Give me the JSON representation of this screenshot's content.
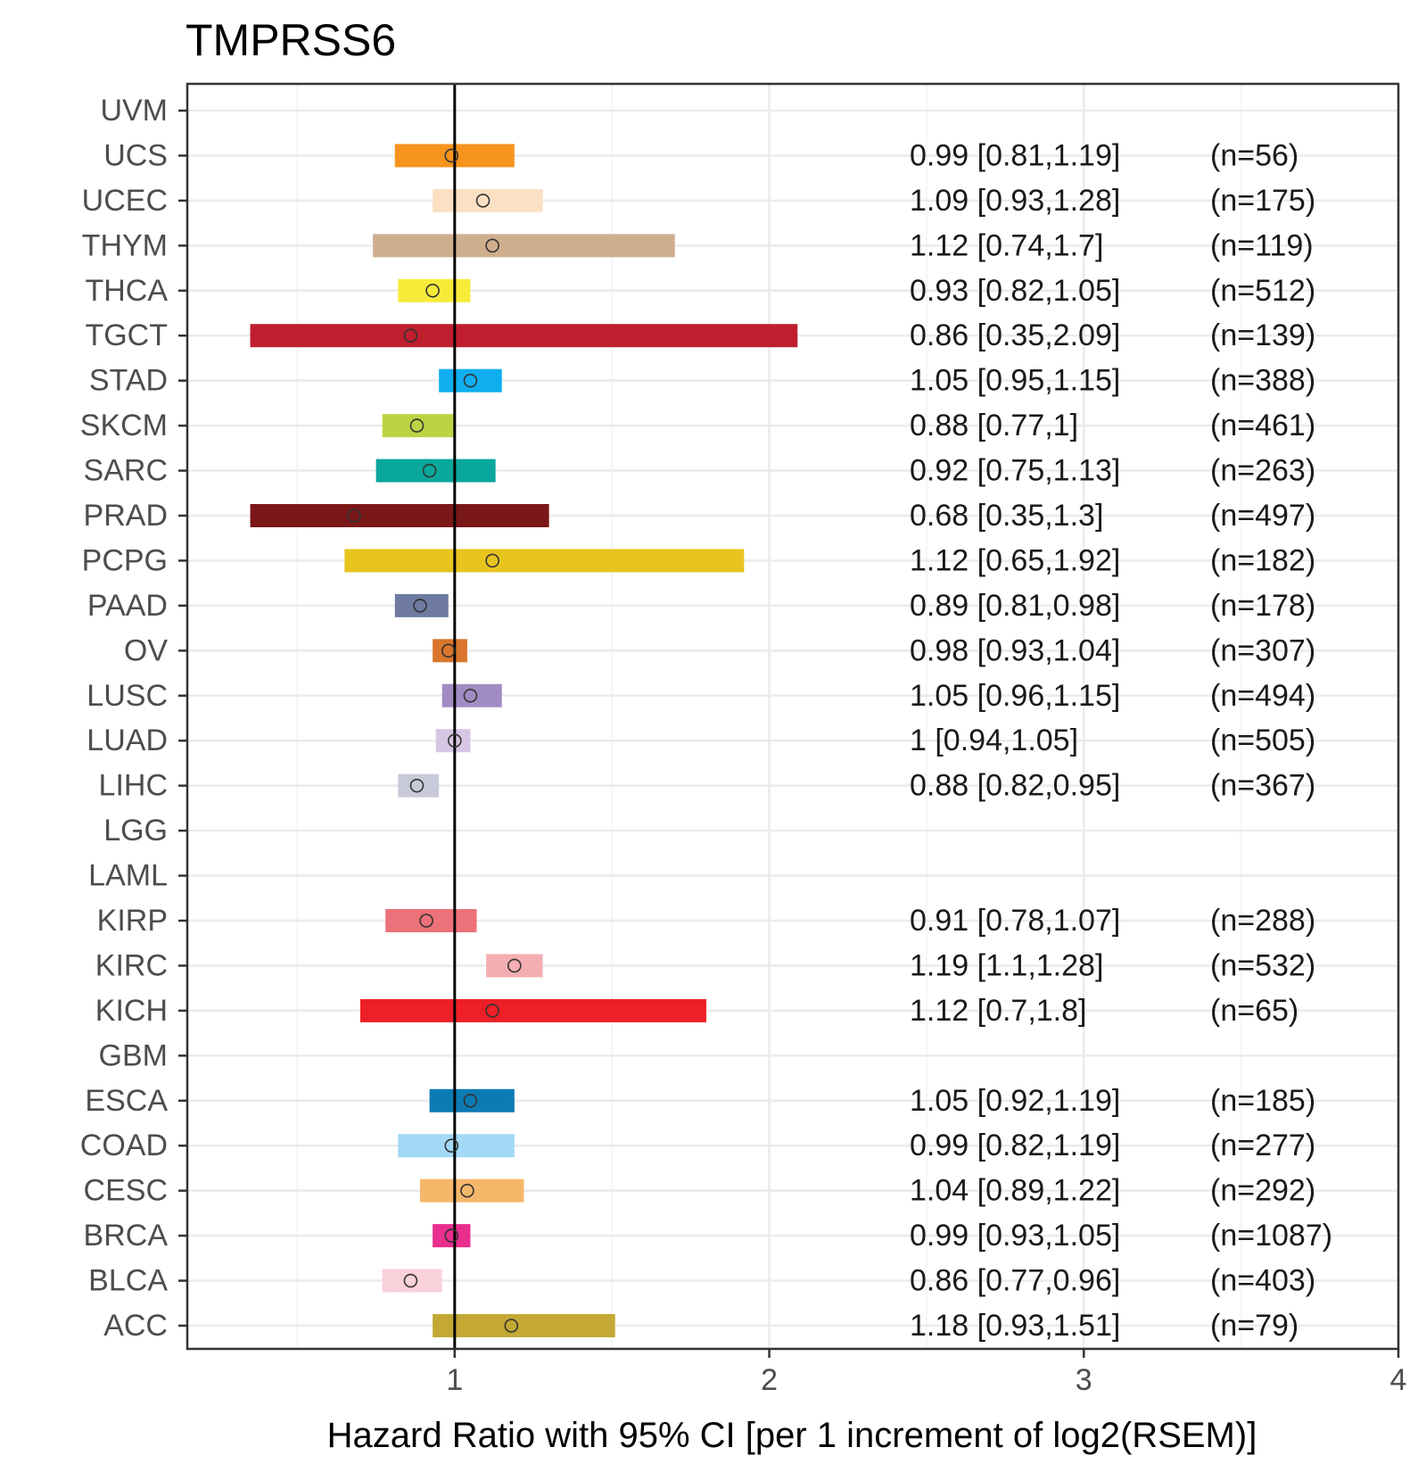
{
  "chart_data": {
    "type": "forest",
    "title": "TMPRSS6",
    "xlabel": "Hazard Ratio with 95% CI [per 1 increment of log2(RSEM)]",
    "ylabel": "",
    "xlim": [
      0.15,
      4.0
    ],
    "xticks": [
      1,
      2,
      3,
      4
    ],
    "xtick_labels": [
      "1",
      "2",
      "3",
      "4"
    ],
    "reference_line": 1,
    "grid": true,
    "rows": [
      {
        "cancer": "UVM",
        "hr": null,
        "lo": null,
        "hi": null,
        "ci_text": "",
        "n_text": "",
        "color": null
      },
      {
        "cancer": "UCS",
        "hr": 0.99,
        "lo": 0.81,
        "hi": 1.19,
        "ci_text": "0.99 [0.81,1.19]",
        "n_text": "(n=56)",
        "color": "#F7941D"
      },
      {
        "cancer": "UCEC",
        "hr": 1.09,
        "lo": 0.93,
        "hi": 1.28,
        "ci_text": "1.09 [0.93,1.28]",
        "n_text": "(n=175)",
        "color": "#FCE0C4"
      },
      {
        "cancer": "THYM",
        "hr": 1.12,
        "lo": 0.74,
        "hi": 1.7,
        "ci_text": "1.12 [0.74,1.7]",
        "n_text": "(n=119)",
        "color": "#CFAE8E"
      },
      {
        "cancer": "THCA",
        "hr": 0.93,
        "lo": 0.82,
        "hi": 1.05,
        "ci_text": "0.93 [0.82,1.05]",
        "n_text": "(n=512)",
        "color": "#F7EB3A"
      },
      {
        "cancer": "TGCT",
        "hr": 0.86,
        "lo": 0.35,
        "hi": 2.09,
        "ci_text": "0.86 [0.35,2.09]",
        "n_text": "(n=139)",
        "color": "#BE1E2D"
      },
      {
        "cancer": "STAD",
        "hr": 1.05,
        "lo": 0.95,
        "hi": 1.15,
        "ci_text": "1.05 [0.95,1.15]",
        "n_text": "(n=388)",
        "color": "#0FAEEF"
      },
      {
        "cancer": "SKCM",
        "hr": 0.88,
        "lo": 0.77,
        "hi": 1,
        "ci_text": "0.88 [0.77,1]",
        "n_text": "(n=461)",
        "color": "#BBD444"
      },
      {
        "cancer": "SARC",
        "hr": 0.92,
        "lo": 0.75,
        "hi": 1.13,
        "ci_text": "0.92 [0.75,1.13]",
        "n_text": "(n=263)",
        "color": "#0AA79C"
      },
      {
        "cancer": "PRAD",
        "hr": 0.68,
        "lo": 0.35,
        "hi": 1.3,
        "ci_text": "0.68 [0.35,1.3]",
        "n_text": "(n=497)",
        "color": "#7A1719"
      },
      {
        "cancer": "PCPG",
        "hr": 1.12,
        "lo": 0.65,
        "hi": 1.92,
        "ci_text": "1.12 [0.65,1.92]",
        "n_text": "(n=182)",
        "color": "#E8C41F"
      },
      {
        "cancer": "PAAD",
        "hr": 0.89,
        "lo": 0.81,
        "hi": 0.98,
        "ci_text": "0.89 [0.81,0.98]",
        "n_text": "(n=178)",
        "color": "#6F7BA1"
      },
      {
        "cancer": "OV",
        "hr": 0.98,
        "lo": 0.93,
        "hi": 1.04,
        "ci_text": "0.98 [0.93,1.04]",
        "n_text": "(n=307)",
        "color": "#D9762B"
      },
      {
        "cancer": "LUSC",
        "hr": 1.05,
        "lo": 0.96,
        "hi": 1.15,
        "ci_text": "1.05 [0.96,1.15]",
        "n_text": "(n=494)",
        "color": "#A08CC2"
      },
      {
        "cancer": "LUAD",
        "hr": 1,
        "lo": 0.94,
        "hi": 1.05,
        "ci_text": "1 [0.94,1.05]",
        "n_text": "(n=505)",
        "color": "#D7C6E3"
      },
      {
        "cancer": "LIHC",
        "hr": 0.88,
        "lo": 0.82,
        "hi": 0.95,
        "ci_text": "0.88 [0.82,0.95]",
        "n_text": "(n=367)",
        "color": "#C9CAD9"
      },
      {
        "cancer": "LGG",
        "hr": null,
        "lo": null,
        "hi": null,
        "ci_text": "",
        "n_text": "",
        "color": null
      },
      {
        "cancer": "LAML",
        "hr": null,
        "lo": null,
        "hi": null,
        "ci_text": "",
        "n_text": "",
        "color": null
      },
      {
        "cancer": "KIRP",
        "hr": 0.91,
        "lo": 0.78,
        "hi": 1.07,
        "ci_text": "0.91 [0.78,1.07]",
        "n_text": "(n=288)",
        "color": "#EC7178"
      },
      {
        "cancer": "KIRC",
        "hr": 1.19,
        "lo": 1.1,
        "hi": 1.28,
        "ci_text": "1.19 [1.1,1.28]",
        "n_text": "(n=532)",
        "color": "#F4AEB1"
      },
      {
        "cancer": "KICH",
        "hr": 1.12,
        "lo": 0.7,
        "hi": 1.8,
        "ci_text": "1.12 [0.7,1.8]",
        "n_text": "(n=65)",
        "color": "#EE1F26"
      },
      {
        "cancer": "GBM",
        "hr": null,
        "lo": null,
        "hi": null,
        "ci_text": "",
        "n_text": "",
        "color": null
      },
      {
        "cancer": "ESCA",
        "hr": 1.05,
        "lo": 0.92,
        "hi": 1.19,
        "ci_text": "1.05 [0.92,1.19]",
        "n_text": "(n=185)",
        "color": "#0C7BB4"
      },
      {
        "cancer": "COAD",
        "hr": 0.99,
        "lo": 0.82,
        "hi": 1.19,
        "ci_text": "0.99 [0.82,1.19]",
        "n_text": "(n=277)",
        "color": "#A2D9F6"
      },
      {
        "cancer": "CESC",
        "hr": 1.04,
        "lo": 0.89,
        "hi": 1.22,
        "ci_text": "1.04 [0.89,1.22]",
        "n_text": "(n=292)",
        "color": "#F5B769"
      },
      {
        "cancer": "BRCA",
        "hr": 0.99,
        "lo": 0.93,
        "hi": 1.05,
        "ci_text": "0.99 [0.93,1.05]",
        "n_text": "(n=1087)",
        "color": "#EA2E8E"
      },
      {
        "cancer": "BLCA",
        "hr": 0.86,
        "lo": 0.77,
        "hi": 0.96,
        "ci_text": "0.86 [0.77,0.96]",
        "n_text": "(n=403)",
        "color": "#F8D1DA"
      },
      {
        "cancer": "ACC",
        "hr": 1.18,
        "lo": 0.93,
        "hi": 1.51,
        "ci_text": "1.18 [0.93,1.51]",
        "n_text": "(n=79)",
        "color": "#C3A834"
      }
    ]
  },
  "colors": {
    "panel_border": "#333333",
    "grid_major": "#EBEBEB",
    "grid_minor": "#F5F5F5",
    "reference_line": "#000000"
  }
}
